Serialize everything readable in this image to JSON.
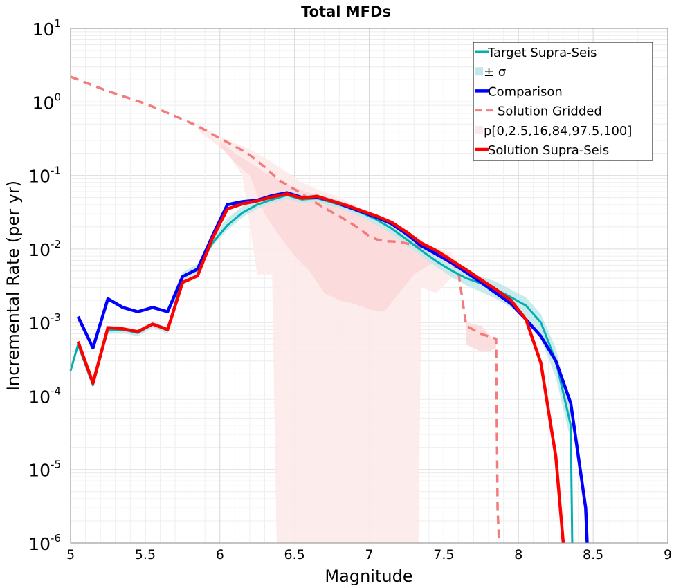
{
  "chart_data": {
    "type": "line",
    "title": "Total MFDs",
    "xlabel": "Magnitude",
    "ylabel": "Incremental Rate (per yr)",
    "xlim": [
      5,
      9
    ],
    "ylim": [
      1e-06,
      10
    ],
    "y_scale": "log",
    "grid": true,
    "legend_position": "top-right",
    "x_ticks": [
      "5",
      "5.5",
      "6",
      "6.5",
      "7",
      "7.5",
      "8",
      "8.5",
      "9"
    ],
    "y_ticks": [
      {
        "base": "10",
        "exp": "-6"
      },
      {
        "base": "10",
        "exp": "-5"
      },
      {
        "base": "10",
        "exp": "-4"
      },
      {
        "base": "10",
        "exp": "-3"
      },
      {
        "base": "10",
        "exp": "-2"
      },
      {
        "base": "10",
        "exp": "-1"
      },
      {
        "base": "10",
        "exp": "0"
      },
      {
        "base": "10",
        "exp": "1"
      }
    ],
    "legend": [
      {
        "label": "Target Supra-Seis",
        "kind": "line",
        "color": "#00b0b0"
      },
      {
        "label": "± σ",
        "kind": "band",
        "color": "#bfe8ea"
      },
      {
        "label": "Comparison",
        "kind": "line",
        "color": "#0000ff"
      },
      {
        "label": "Solution Gridded",
        "kind": "dash",
        "color": "#f27b7b"
      },
      {
        "label": "p[0,2.5,16,84,97.5,100]",
        "kind": "band",
        "color": "#fde8e8"
      },
      {
        "label": "Solution Supra-Seis",
        "kind": "line",
        "color": "#ff0000"
      }
    ],
    "bands": [
      {
        "name": "p[0,2.5,16,84,97.5,100] outer",
        "color": "#fdeaea",
        "upper": [
          [
            5.85,
            0.5
          ],
          [
            6.05,
            0.3
          ],
          [
            6.15,
            0.25
          ],
          [
            6.25,
            0.2
          ],
          [
            6.35,
            0.15
          ],
          [
            6.45,
            0.11
          ],
          [
            6.55,
            0.08
          ],
          [
            6.65,
            0.065
          ],
          [
            6.75,
            0.055
          ],
          [
            6.85,
            0.045
          ],
          [
            6.95,
            0.035
          ],
          [
            7.05,
            0.028
          ],
          [
            7.15,
            0.022
          ],
          [
            7.25,
            0.016
          ],
          [
            7.35,
            0.012
          ],
          [
            7.45,
            0.01
          ],
          [
            7.55,
            0.009
          ],
          [
            7.6,
            0.006
          ]
        ],
        "lower": [
          [
            5.85,
            0.42
          ],
          [
            6.05,
            0.2
          ],
          [
            6.15,
            0.1
          ],
          [
            6.25,
            0.0045
          ],
          [
            6.35,
            0.0045
          ],
          [
            6.38,
            1e-06
          ],
          [
            7.33,
            1e-06
          ],
          [
            7.35,
            0.003
          ],
          [
            7.45,
            0.0025
          ],
          [
            7.55,
            0.004
          ],
          [
            7.6,
            0.005
          ]
        ]
      },
      {
        "name": "p[0,2.5,16,84,97.5,100] inner",
        "color": "#fbd9d9",
        "upper": [
          [
            6.0,
            0.3
          ],
          [
            6.1,
            0.2
          ],
          [
            6.2,
            0.15
          ],
          [
            6.3,
            0.11
          ],
          [
            6.4,
            0.085
          ],
          [
            6.5,
            0.068
          ],
          [
            6.6,
            0.058
          ],
          [
            6.7,
            0.05
          ],
          [
            6.8,
            0.042
          ],
          [
            6.9,
            0.034
          ],
          [
            7.0,
            0.026
          ],
          [
            7.1,
            0.02
          ],
          [
            7.2,
            0.016
          ],
          [
            7.3,
            0.012
          ],
          [
            7.4,
            0.01
          ],
          [
            7.5,
            0.009
          ]
        ],
        "lower": [
          [
            6.0,
            0.25
          ],
          [
            6.1,
            0.15
          ],
          [
            6.2,
            0.1
          ],
          [
            6.3,
            0.03
          ],
          [
            6.4,
            0.015
          ],
          [
            6.5,
            0.008
          ],
          [
            6.6,
            0.005
          ],
          [
            6.7,
            0.0025
          ],
          [
            6.8,
            0.002
          ],
          [
            6.9,
            0.0018
          ],
          [
            7.0,
            0.0015
          ],
          [
            7.1,
            0.0014
          ],
          [
            7.2,
            0.0025
          ],
          [
            7.3,
            0.0045
          ],
          [
            7.4,
            0.006
          ],
          [
            7.5,
            0.007
          ]
        ]
      },
      {
        "name": "p[0,2.5,16,84,97.5,100] tail",
        "color": "#fbdcdc",
        "upper": [
          [
            7.65,
            0.001
          ],
          [
            7.75,
            0.0009
          ],
          [
            7.8,
            0.0007
          ],
          [
            7.85,
            0.00055
          ]
        ],
        "lower": [
          [
            7.65,
            0.0005
          ],
          [
            7.75,
            0.0004
          ],
          [
            7.8,
            0.0004
          ],
          [
            7.85,
            0.00045
          ]
        ]
      },
      {
        "name": "± σ",
        "color": "#bfe8ea",
        "upper": [
          [
            5.05,
            0.00055
          ],
          [
            5.15,
            0.00016
          ],
          [
            5.25,
            0.0009
          ],
          [
            5.35,
            0.00088
          ],
          [
            5.45,
            0.0008
          ],
          [
            5.55,
            0.00105
          ],
          [
            5.65,
            0.00085
          ],
          [
            5.75,
            0.0048
          ],
          [
            5.85,
            0.0062
          ],
          [
            5.95,
            0.015
          ],
          [
            6.05,
            0.026
          ],
          [
            6.15,
            0.038
          ],
          [
            6.25,
            0.047
          ],
          [
            6.35,
            0.055
          ],
          [
            6.45,
            0.062
          ],
          [
            6.55,
            0.054
          ],
          [
            6.65,
            0.056
          ],
          [
            6.75,
            0.049
          ],
          [
            6.85,
            0.042
          ],
          [
            6.95,
            0.035
          ],
          [
            7.05,
            0.028
          ],
          [
            7.15,
            0.022
          ],
          [
            7.25,
            0.016
          ],
          [
            7.35,
            0.011
          ],
          [
            7.45,
            0.008
          ],
          [
            7.55,
            0.006
          ],
          [
            7.65,
            0.0048
          ],
          [
            7.75,
            0.0042
          ],
          [
            7.85,
            0.0036
          ],
          [
            7.95,
            0.0028
          ],
          [
            8.05,
            0.0022
          ],
          [
            8.15,
            0.0013
          ],
          [
            8.25,
            0.00045
          ],
          [
            8.35,
            6e-05
          ]
        ],
        "lower": [
          [
            5.05,
            0.00045
          ],
          [
            5.15,
            0.00013
          ],
          [
            5.25,
            0.0007
          ],
          [
            5.35,
            0.00072
          ],
          [
            5.45,
            0.00065
          ],
          [
            5.55,
            0.00085
          ],
          [
            5.65,
            0.0007
          ],
          [
            5.75,
            0.0036
          ],
          [
            5.85,
            0.0045
          ],
          [
            5.95,
            0.011
          ],
          [
            6.05,
            0.018
          ],
          [
            6.15,
            0.027
          ],
          [
            6.25,
            0.035
          ],
          [
            6.35,
            0.042
          ],
          [
            6.45,
            0.048
          ],
          [
            6.55,
            0.042
          ],
          [
            6.65,
            0.044
          ],
          [
            6.75,
            0.038
          ],
          [
            6.85,
            0.033
          ],
          [
            6.95,
            0.027
          ],
          [
            7.05,
            0.021
          ],
          [
            7.15,
            0.016
          ],
          [
            7.25,
            0.011
          ],
          [
            7.35,
            0.008
          ],
          [
            7.45,
            0.0057
          ],
          [
            7.55,
            0.0042
          ],
          [
            7.65,
            0.0032
          ],
          [
            7.75,
            0.0026
          ],
          [
            7.85,
            0.0021
          ],
          [
            7.95,
            0.0016
          ],
          [
            8.05,
            0.0012
          ],
          [
            8.15,
            0.0006
          ],
          [
            8.25,
            0.00018
          ],
          [
            8.35,
            2.5e-05
          ]
        ]
      }
    ],
    "series": [
      {
        "name": "Solution Gridded",
        "color": "#f27b7b",
        "style": "dash",
        "width": 3.5,
        "points": [
          [
            5.0,
            2.2
          ],
          [
            5.25,
            1.4
          ],
          [
            5.5,
            0.95
          ],
          [
            5.75,
            0.58
          ],
          [
            5.85,
            0.47
          ],
          [
            6.0,
            0.32
          ],
          [
            6.1,
            0.25
          ],
          [
            6.2,
            0.19
          ],
          [
            6.3,
            0.13
          ],
          [
            6.4,
            0.085
          ],
          [
            6.5,
            0.065
          ],
          [
            6.6,
            0.048
          ],
          [
            6.7,
            0.036
          ],
          [
            6.8,
            0.028
          ],
          [
            6.9,
            0.021
          ],
          [
            7.0,
            0.015
          ],
          [
            7.05,
            0.0135
          ],
          [
            7.1,
            0.0128
          ],
          [
            7.2,
            0.0125
          ],
          [
            7.3,
            0.0113
          ],
          [
            7.4,
            0.0098
          ],
          [
            7.5,
            0.0083
          ],
          [
            7.55,
            0.0074
          ],
          [
            7.6,
            0.0045
          ],
          [
            7.65,
            0.0009
          ],
          [
            7.75,
            0.0007
          ],
          [
            7.85,
            0.0006
          ],
          [
            7.86,
            3e-06
          ],
          [
            7.87,
            1e-06
          ]
        ]
      },
      {
        "name": "Target Supra-Seis",
        "color": "#00b0b0",
        "style": "solid",
        "width": 3,
        "points": [
          [
            5.0,
            0.00022
          ],
          [
            5.05,
            0.0005
          ],
          [
            5.15,
            0.00014
          ],
          [
            5.25,
            0.0008
          ],
          [
            5.35,
            0.0008
          ],
          [
            5.45,
            0.00072
          ],
          [
            5.55,
            0.00095
          ],
          [
            5.65,
            0.00078
          ],
          [
            5.75,
            0.0042
          ],
          [
            5.85,
            0.0053
          ],
          [
            5.95,
            0.012
          ],
          [
            6.05,
            0.021
          ],
          [
            6.15,
            0.031
          ],
          [
            6.25,
            0.04
          ],
          [
            6.35,
            0.047
          ],
          [
            6.45,
            0.054
          ],
          [
            6.55,
            0.047
          ],
          [
            6.65,
            0.049
          ],
          [
            6.75,
            0.043
          ],
          [
            6.85,
            0.037
          ],
          [
            6.95,
            0.031
          ],
          [
            7.05,
            0.025
          ],
          [
            7.15,
            0.019
          ],
          [
            7.25,
            0.0135
          ],
          [
            7.35,
            0.0095
          ],
          [
            7.45,
            0.0068
          ],
          [
            7.55,
            0.0051
          ],
          [
            7.65,
            0.004
          ],
          [
            7.75,
            0.0034
          ],
          [
            7.85,
            0.0028
          ],
          [
            7.95,
            0.0022
          ],
          [
            8.05,
            0.0017
          ],
          [
            8.15,
            0.001
          ],
          [
            8.25,
            0.0003
          ],
          [
            8.35,
            4e-05
          ],
          [
            8.36,
            1e-06
          ]
        ]
      },
      {
        "name": "Comparison",
        "color": "#0000ff",
        "style": "solid",
        "width": 4.5,
        "points": [
          [
            5.05,
            0.0012
          ],
          [
            5.15,
            0.00045
          ],
          [
            5.25,
            0.0021
          ],
          [
            5.35,
            0.0016
          ],
          [
            5.45,
            0.0014
          ],
          [
            5.55,
            0.0016
          ],
          [
            5.65,
            0.0014
          ],
          [
            5.75,
            0.0042
          ],
          [
            5.85,
            0.0053
          ],
          [
            5.95,
            0.015
          ],
          [
            6.05,
            0.04
          ],
          [
            6.15,
            0.044
          ],
          [
            6.25,
            0.046
          ],
          [
            6.35,
            0.053
          ],
          [
            6.45,
            0.058
          ],
          [
            6.55,
            0.05
          ],
          [
            6.65,
            0.051
          ],
          [
            6.75,
            0.045
          ],
          [
            6.85,
            0.038
          ],
          [
            6.95,
            0.032
          ],
          [
            7.05,
            0.027
          ],
          [
            7.15,
            0.022
          ],
          [
            7.25,
            0.016
          ],
          [
            7.35,
            0.011
          ],
          [
            7.45,
            0.0085
          ],
          [
            7.55,
            0.0065
          ],
          [
            7.65,
            0.0048
          ],
          [
            7.75,
            0.0035
          ],
          [
            7.85,
            0.0025
          ],
          [
            7.95,
            0.0018
          ],
          [
            8.05,
            0.0011
          ],
          [
            8.15,
            0.00065
          ],
          [
            8.25,
            0.0003
          ],
          [
            8.35,
            8e-05
          ],
          [
            8.45,
            3e-06
          ],
          [
            8.46,
            1e-06
          ]
        ]
      },
      {
        "name": "Solution Supra-Seis",
        "color": "#ff0000",
        "style": "solid",
        "width": 4.5,
        "points": [
          [
            5.05,
            0.00055
          ],
          [
            5.15,
            0.00015
          ],
          [
            5.25,
            0.00085
          ],
          [
            5.35,
            0.00082
          ],
          [
            5.45,
            0.00075
          ],
          [
            5.55,
            0.00095
          ],
          [
            5.65,
            0.0008
          ],
          [
            5.75,
            0.0035
          ],
          [
            5.85,
            0.0043
          ],
          [
            5.95,
            0.014
          ],
          [
            6.05,
            0.035
          ],
          [
            6.15,
            0.041
          ],
          [
            6.25,
            0.045
          ],
          [
            6.35,
            0.051
          ],
          [
            6.45,
            0.056
          ],
          [
            6.55,
            0.049
          ],
          [
            6.65,
            0.052
          ],
          [
            6.75,
            0.045
          ],
          [
            6.85,
            0.039
          ],
          [
            6.95,
            0.033
          ],
          [
            7.05,
            0.028
          ],
          [
            7.15,
            0.023
          ],
          [
            7.25,
            0.017
          ],
          [
            7.35,
            0.012
          ],
          [
            7.45,
            0.0095
          ],
          [
            7.55,
            0.007
          ],
          [
            7.65,
            0.0052
          ],
          [
            7.75,
            0.0038
          ],
          [
            7.85,
            0.0028
          ],
          [
            7.95,
            0.002
          ],
          [
            8.05,
            0.0011
          ],
          [
            8.15,
            0.00028
          ],
          [
            8.25,
            1.5e-05
          ],
          [
            8.3,
            1e-06
          ]
        ]
      }
    ]
  }
}
